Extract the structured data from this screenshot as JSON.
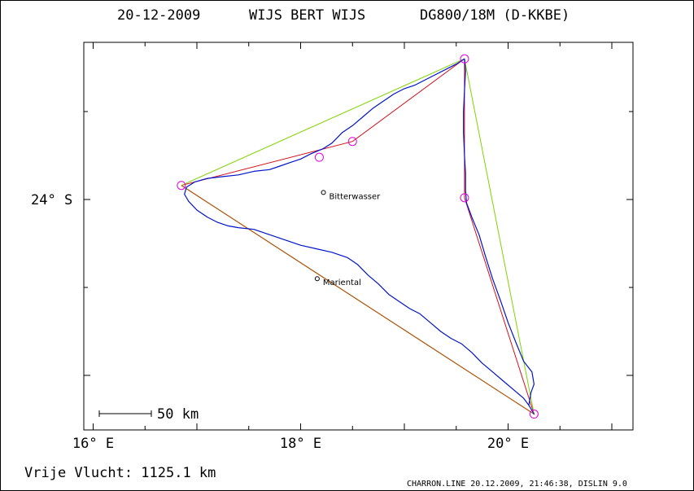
{
  "title": {
    "date": "20-12-2009",
    "pilot": "WIJS BERT WIJS",
    "glider": "DG800/18M (D-KKBE)"
  },
  "axes": {
    "x_ticks": [
      {
        "lon": 16,
        "label": "16° E"
      },
      {
        "lon": 18,
        "label": "18° E"
      },
      {
        "lon": 20,
        "label": "20° E"
      }
    ],
    "y_ticks": [
      {
        "lat": -24,
        "label": "24° S"
      }
    ]
  },
  "places": [
    {
      "name": "Bitterwasser",
      "lon": 18.22,
      "lat": -23.96
    },
    {
      "name": "Mariental",
      "lon": 18.16,
      "lat": -24.45
    }
  ],
  "scale_bar": {
    "label": "50 km",
    "km": 50
  },
  "distance": "Vrije Vlucht: 1125.1 km",
  "footer": "CHARRON.LINE 20.12.2009, 21:46:38, DISLIN 9.0",
  "turnpoints": [
    {
      "lon": 19.58,
      "lat": -23.2
    },
    {
      "lon": 16.85,
      "lat": -23.92
    },
    {
      "lon": 20.25,
      "lat": -25.22
    },
    {
      "lon": 19.58,
      "lat": -23.99
    },
    {
      "lon": 18.5,
      "lat": -23.67
    },
    {
      "lon": 18.18,
      "lat": -23.76
    }
  ],
  "courses": [
    {
      "color": "#d4101a",
      "points": [
        [
          16.85,
          -23.92
        ],
        [
          18.5,
          -23.67
        ],
        [
          19.58,
          -23.2
        ],
        [
          19.58,
          -23.99
        ],
        [
          20.25,
          -25.22
        ],
        [
          16.85,
          -23.92
        ]
      ]
    },
    {
      "color": "#7fd400",
      "points": [
        [
          16.85,
          -23.92
        ],
        [
          19.58,
          -23.2
        ],
        [
          20.25,
          -25.22
        ]
      ]
    },
    {
      "color": "#a65a00",
      "points": [
        [
          16.85,
          -23.92
        ],
        [
          20.25,
          -25.22
        ]
      ]
    }
  ],
  "track": {
    "color": "#0014c8",
    "points": [
      [
        19.58,
        -23.2
      ],
      [
        19.5,
        -23.23
      ],
      [
        19.4,
        -23.26
      ],
      [
        19.3,
        -23.29
      ],
      [
        19.2,
        -23.32
      ],
      [
        19.1,
        -23.35
      ],
      [
        19.0,
        -23.37
      ],
      [
        18.9,
        -23.4
      ],
      [
        18.8,
        -23.44
      ],
      [
        18.7,
        -23.48
      ],
      [
        18.6,
        -23.53
      ],
      [
        18.5,
        -23.58
      ],
      [
        18.4,
        -23.62
      ],
      [
        18.3,
        -23.68
      ],
      [
        18.22,
        -23.71
      ],
      [
        18.1,
        -23.74
      ],
      [
        18.0,
        -23.77
      ],
      [
        17.9,
        -23.79
      ],
      [
        17.8,
        -23.81
      ],
      [
        17.7,
        -23.83
      ],
      [
        17.55,
        -23.84
      ],
      [
        17.4,
        -23.86
      ],
      [
        17.25,
        -23.87
      ],
      [
        17.1,
        -23.88
      ],
      [
        16.98,
        -23.9
      ],
      [
        16.9,
        -23.93
      ],
      [
        16.88,
        -23.97
      ],
      [
        16.92,
        -24.01
      ],
      [
        17.0,
        -24.06
      ],
      [
        17.1,
        -24.1
      ],
      [
        17.2,
        -24.13
      ],
      [
        17.3,
        -24.15
      ],
      [
        17.4,
        -24.16
      ],
      [
        17.55,
        -24.17
      ],
      [
        17.7,
        -24.2
      ],
      [
        17.85,
        -24.23
      ],
      [
        18.0,
        -24.26
      ],
      [
        18.15,
        -24.28
      ],
      [
        18.3,
        -24.3
      ],
      [
        18.45,
        -24.33
      ],
      [
        18.55,
        -24.37
      ],
      [
        18.65,
        -24.43
      ],
      [
        18.75,
        -24.48
      ],
      [
        18.85,
        -24.54
      ],
      [
        18.95,
        -24.58
      ],
      [
        19.05,
        -24.62
      ],
      [
        19.15,
        -24.65
      ],
      [
        19.25,
        -24.7
      ],
      [
        19.35,
        -24.75
      ],
      [
        19.45,
        -24.79
      ],
      [
        19.55,
        -24.82
      ],
      [
        19.65,
        -24.87
      ],
      [
        19.75,
        -24.93
      ],
      [
        19.85,
        -24.98
      ],
      [
        19.95,
        -25.03
      ],
      [
        20.05,
        -25.08
      ],
      [
        20.15,
        -25.13
      ],
      [
        20.2,
        -25.17
      ],
      [
        20.25,
        -25.22
      ],
      [
        20.2,
        -25.17
      ],
      [
        20.22,
        -25.1
      ],
      [
        20.25,
        -25.05
      ],
      [
        20.23,
        -24.98
      ],
      [
        20.15,
        -24.92
      ],
      [
        20.08,
        -24.82
      ],
      [
        20.0,
        -24.7
      ],
      [
        19.93,
        -24.58
      ],
      [
        19.85,
        -24.45
      ],
      [
        19.78,
        -24.32
      ],
      [
        19.72,
        -24.2
      ],
      [
        19.65,
        -24.1
      ],
      [
        19.6,
        -24.02
      ],
      [
        19.59,
        -23.95
      ],
      [
        19.59,
        -23.85
      ],
      [
        19.58,
        -23.75
      ],
      [
        19.57,
        -23.62
      ],
      [
        19.57,
        -23.5
      ],
      [
        19.58,
        -23.38
      ],
      [
        19.59,
        -23.27
      ],
      [
        19.58,
        -23.2
      ]
    ]
  }
}
